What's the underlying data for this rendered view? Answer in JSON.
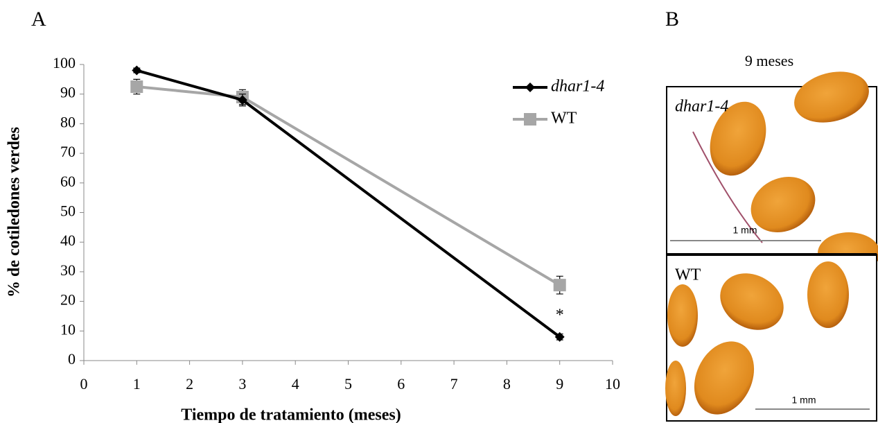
{
  "panel_labels": [
    "A",
    "B"
  ],
  "chart_data": {
    "type": "line",
    "x_label": "Tiempo de tratamiento (meses)",
    "y_label": "% de cotiledones verdes",
    "x": [
      1,
      3,
      9
    ],
    "series": [
      {
        "name": "dhar1-4",
        "color": "#000000",
        "marker": "diamond",
        "values": [
          98,
          88,
          8
        ],
        "errors": [
          0.8,
          2,
          1
        ]
      },
      {
        "name": "WT",
        "color": "#a6a6a6",
        "marker": "square",
        "values": [
          92.5,
          89,
          25.5
        ],
        "errors": [
          2.5,
          2.5,
          3
        ]
      }
    ],
    "annotations": [
      {
        "text": "*",
        "x": 9,
        "y": 15
      }
    ],
    "xlim": [
      0,
      10
    ],
    "xticks": [
      0,
      1,
      2,
      3,
      4,
      5,
      6,
      7,
      8,
      9,
      10
    ],
    "ylim": [
      0,
      100
    ],
    "yticks": [
      0,
      10,
      20,
      30,
      40,
      50,
      60,
      70,
      80,
      90,
      100
    ],
    "legend": "upper right"
  },
  "panel_b": {
    "title": "9 meses",
    "images": [
      {
        "label": "dhar1-4",
        "scale": "1 mm"
      },
      {
        "label": "WT",
        "scale": "1 mm"
      }
    ]
  }
}
